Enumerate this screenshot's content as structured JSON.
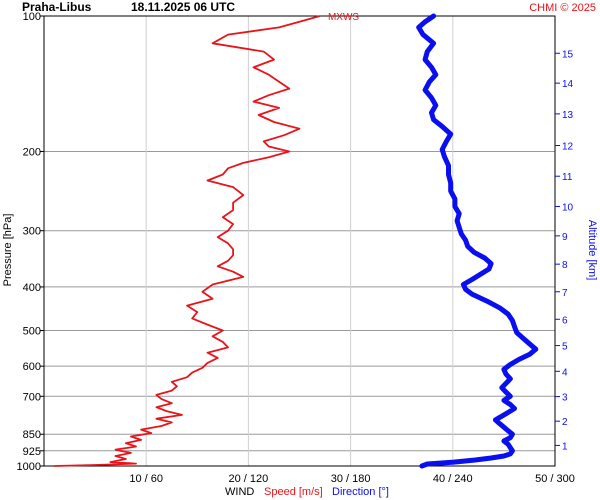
{
  "header": {
    "station": "Praha-Libus",
    "datetime": "18.11.2025 06 UTC",
    "credit": "CHMI © 2025"
  },
  "colors": {
    "speed": "#e8141a",
    "direction": "#0a0ff0",
    "grid_major": "#9a9a9a",
    "grid_minor": "#d0d0d0",
    "text": "#000000"
  },
  "chart_data": {
    "type": "line",
    "left_axis": {
      "label": "Pressure [hPa]",
      "scale": "log",
      "range": [
        1000,
        100
      ],
      "ticks": [
        100,
        200,
        300,
        400,
        500,
        600,
        700,
        850,
        925,
        1000
      ]
    },
    "right_axis": {
      "label": "Altitude [km]",
      "ticks": [
        {
          "km": 1,
          "p": 900
        },
        {
          "km": 2,
          "p": 795
        },
        {
          "km": 3,
          "p": 701
        },
        {
          "km": 4,
          "p": 616
        },
        {
          "km": 5,
          "p": 540
        },
        {
          "km": 6,
          "p": 472
        },
        {
          "km": 7,
          "p": 410
        },
        {
          "km": 8,
          "p": 356
        },
        {
          "km": 9,
          "p": 308
        },
        {
          "km": 10,
          "p": 265
        },
        {
          "km": 11,
          "p": 227
        },
        {
          "km": 12,
          "p": 194
        },
        {
          "km": 13,
          "p": 165
        },
        {
          "km": 14,
          "p": 141
        },
        {
          "km": 15,
          "p": 121
        }
      ]
    },
    "x_axis": {
      "title": "WIND",
      "speed_title": "Speed [m/s]",
      "direction_title": "Direction [°]",
      "speed_range": [
        0,
        50
      ],
      "direction_range": [
        -120,
        360
      ],
      "tick_labels": [
        "10 / 60",
        "20 / 120",
        "30 / 180",
        "40 / 240",
        "50 / 300"
      ],
      "tick_speeds": [
        10,
        20,
        30,
        40,
        50
      ]
    },
    "annotations": [
      {
        "text": "MXWS",
        "p": 100,
        "speed": 27
      }
    ],
    "series": [
      {
        "name": "Speed [m/s]",
        "unit": "m/s",
        "points": [
          [
            1000,
            1.0
          ],
          [
            995,
            5.0
          ],
          [
            988,
            9.0
          ],
          [
            980,
            6.5
          ],
          [
            965,
            8.0
          ],
          [
            950,
            7.0
          ],
          [
            935,
            8.5
          ],
          [
            920,
            7.0
          ],
          [
            905,
            9.0
          ],
          [
            890,
            8.0
          ],
          [
            875,
            9.5
          ],
          [
            860,
            8.5
          ],
          [
            845,
            10.5
          ],
          [
            830,
            9.5
          ],
          [
            815,
            11.5
          ],
          [
            800,
            12.5
          ],
          [
            785,
            11.0
          ],
          [
            770,
            13.5
          ],
          [
            755,
            12.0
          ],
          [
            740,
            11.0
          ],
          [
            725,
            12.5
          ],
          [
            710,
            11.5
          ],
          [
            695,
            11.0
          ],
          [
            680,
            12.5
          ],
          [
            665,
            13.0
          ],
          [
            650,
            12.5
          ],
          [
            635,
            14.0
          ],
          [
            620,
            14.5
          ],
          [
            605,
            15.5
          ],
          [
            590,
            16.0
          ],
          [
            575,
            17.0
          ],
          [
            560,
            16.0
          ],
          [
            545,
            18.0
          ],
          [
            530,
            17.5
          ],
          [
            515,
            16.5
          ],
          [
            500,
            17.5
          ],
          [
            485,
            16.0
          ],
          [
            470,
            14.5
          ],
          [
            455,
            15.0
          ],
          [
            440,
            14.0
          ],
          [
            425,
            16.5
          ],
          [
            410,
            15.5
          ],
          [
            395,
            16.5
          ],
          [
            380,
            19.5
          ],
          [
            370,
            18.5
          ],
          [
            360,
            17.0
          ],
          [
            350,
            18.0
          ],
          [
            340,
            18.5
          ],
          [
            330,
            18.5
          ],
          [
            320,
            18.0
          ],
          [
            310,
            17.0
          ],
          [
            300,
            18.0
          ],
          [
            290,
            18.5
          ],
          [
            280,
            17.5
          ],
          [
            270,
            18.5
          ],
          [
            260,
            18.5
          ],
          [
            250,
            19.5
          ],
          [
            240,
            18.5
          ],
          [
            232,
            16.0
          ],
          [
            225,
            17.5
          ],
          [
            218,
            18.0
          ],
          [
            212,
            19.5
          ],
          [
            206,
            22.0
          ],
          [
            200,
            24.0
          ],
          [
            195,
            22.0
          ],
          [
            190,
            21.5
          ],
          [
            184,
            23.5
          ],
          [
            178,
            25.0
          ],
          [
            172,
            22.5
          ],
          [
            166,
            21.0
          ],
          [
            160,
            23.0
          ],
          [
            155,
            20.5
          ],
          [
            150,
            22.0
          ],
          [
            145,
            24.0
          ],
          [
            140,
            23.0
          ],
          [
            135,
            22.0
          ],
          [
            130,
            20.5
          ],
          [
            125,
            22.5
          ],
          [
            120,
            21.5
          ],
          [
            115,
            16.5
          ],
          [
            110,
            18.0
          ],
          [
            106,
            23.0
          ],
          [
            103,
            25.0
          ],
          [
            100,
            27.0
          ]
        ]
      },
      {
        "name": "Direction [°]",
        "unit": "deg",
        "points": [
          [
            1000,
            235
          ],
          [
            990,
            240
          ],
          [
            980,
            265
          ],
          [
            970,
            285
          ],
          [
            960,
            300
          ],
          [
            950,
            312
          ],
          [
            940,
            318
          ],
          [
            925,
            320
          ],
          [
            910,
            318
          ],
          [
            895,
            316
          ],
          [
            880,
            312
          ],
          [
            865,
            318
          ],
          [
            850,
            320
          ],
          [
            835,
            316
          ],
          [
            820,
            312
          ],
          [
            805,
            308
          ],
          [
            790,
            304
          ],
          [
            775,
            310
          ],
          [
            760,
            316
          ],
          [
            745,
            322
          ],
          [
            730,
            318
          ],
          [
            715,
            312
          ],
          [
            700,
            318
          ],
          [
            685,
            314
          ],
          [
            670,
            310
          ],
          [
            655,
            314
          ],
          [
            640,
            318
          ],
          [
            625,
            314
          ],
          [
            610,
            312
          ],
          [
            595,
            318
          ],
          [
            580,
            326
          ],
          [
            565,
            336
          ],
          [
            550,
            342
          ],
          [
            535,
            336
          ],
          [
            520,
            330
          ],
          [
            505,
            324
          ],
          [
            490,
            322
          ],
          [
            475,
            320
          ],
          [
            460,
            316
          ],
          [
            445,
            308
          ],
          [
            430,
            296
          ],
          [
            415,
            282
          ],
          [
            405,
            276
          ],
          [
            395,
            274
          ],
          [
            385,
            282
          ],
          [
            375,
            290
          ],
          [
            365,
            298
          ],
          [
            355,
            300
          ],
          [
            345,
            294
          ],
          [
            335,
            284
          ],
          [
            325,
            278
          ],
          [
            315,
            276
          ],
          [
            305,
            272
          ],
          [
            295,
            270
          ],
          [
            285,
            268
          ],
          [
            275,
            270
          ],
          [
            265,
            266
          ],
          [
            255,
            266
          ],
          [
            245,
            262
          ],
          [
            235,
            262
          ],
          [
            225,
            260
          ],
          [
            215,
            260
          ],
          [
            205,
            256
          ],
          [
            198,
            254
          ],
          [
            190,
            258
          ],
          [
            183,
            262
          ],
          [
            176,
            254
          ],
          [
            170,
            246
          ],
          [
            164,
            244
          ],
          [
            158,
            248
          ],
          [
            152,
            244
          ],
          [
            146,
            238
          ],
          [
            140,
            242
          ],
          [
            135,
            248
          ],
          [
            130,
            244
          ],
          [
            125,
            238
          ],
          [
            120,
            240
          ],
          [
            115,
            246
          ],
          [
            110,
            236
          ],
          [
            106,
            232
          ],
          [
            103,
            238
          ],
          [
            100,
            246
          ]
        ]
      }
    ]
  }
}
